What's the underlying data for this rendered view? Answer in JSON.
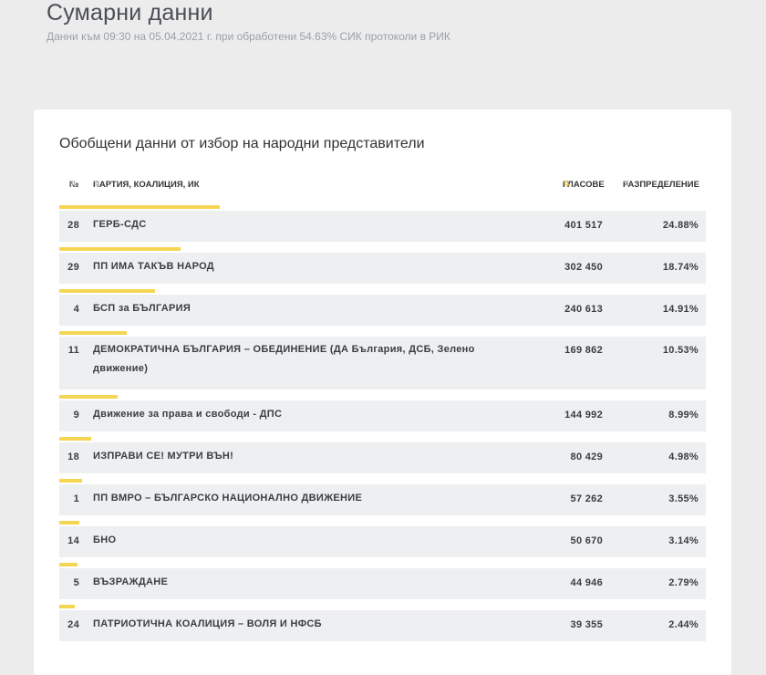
{
  "page": {
    "title": "Сумарни данни",
    "subtitle": "Данни към 09:30 на 05.04.2021 г. при обработени 54.63% СИК протоколи в РИК"
  },
  "card": {
    "title": "Обобщени данни от избор на народни представители"
  },
  "table": {
    "headers": {
      "number": "№",
      "party": "ПАРТИЯ, КОАЛИЦИЯ, ИК",
      "votes": "ГЛАСОВЕ",
      "share": "РАЗПРЕДЕЛЕНИЕ"
    },
    "sort_icons": {
      "inactive": "⇅",
      "active": "⇅"
    },
    "bar_color": "#f6d553",
    "rows": [
      {
        "num": "28",
        "party": "ГЕРБ-СДС",
        "votes": "401 517",
        "share": "24.88%",
        "share_value": 24.88
      },
      {
        "num": "29",
        "party": "ПП ИМА ТАКЪВ НАРОД",
        "votes": "302 450",
        "share": "18.74%",
        "share_value": 18.74
      },
      {
        "num": "4",
        "party": "БСП за БЪЛГАРИЯ",
        "votes": "240 613",
        "share": "14.91%",
        "share_value": 14.91
      },
      {
        "num": "11",
        "party": "ДЕМОКРАТИЧНА БЪЛГАРИЯ – ОБЕДИНЕНИЕ (ДА България, ДСБ, Зелено движение)",
        "votes": "169 862",
        "share": "10.53%",
        "share_value": 10.53
      },
      {
        "num": "9",
        "party": "Движение за права и свободи - ДПС",
        "votes": "144 992",
        "share": "8.99%",
        "share_value": 8.99
      },
      {
        "num": "18",
        "party": "ИЗПРАВИ СЕ! МУТРИ ВЪН!",
        "votes": "80 429",
        "share": "4.98%",
        "share_value": 4.98
      },
      {
        "num": "1",
        "party": "ПП ВМРО – БЪЛГАРСКО НАЦИОНАЛНО ДВИЖЕНИЕ",
        "votes": "57 262",
        "share": "3.55%",
        "share_value": 3.55
      },
      {
        "num": "14",
        "party": "БНО",
        "votes": "50 670",
        "share": "3.14%",
        "share_value": 3.14
      },
      {
        "num": "5",
        "party": "ВЪЗРАЖДАНЕ",
        "votes": "44 946",
        "share": "2.79%",
        "share_value": 2.79
      },
      {
        "num": "24",
        "party": "ПАТРИОТИЧНА КОАЛИЦИЯ – ВОЛЯ И НФСБ",
        "votes": "39 355",
        "share": "2.44%",
        "share_value": 2.44
      }
    ]
  }
}
